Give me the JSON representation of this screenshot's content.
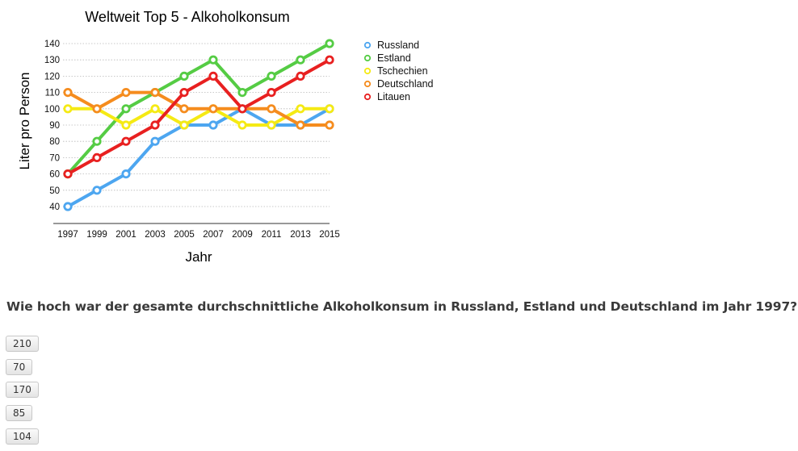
{
  "chart_data": {
    "type": "line",
    "title": "Weltweit Top 5 - Alkoholkonsum",
    "xlabel": "Jahr",
    "ylabel": "Liter pro Person",
    "x": [
      "1997",
      "1999",
      "2001",
      "2003",
      "2005",
      "2007",
      "2009",
      "2011",
      "2013",
      "2015"
    ],
    "yticks": [
      40,
      50,
      60,
      70,
      80,
      90,
      100,
      110,
      120,
      130,
      140
    ],
    "ylim": [
      40,
      140
    ],
    "grid": "horizontal-dotted",
    "legend_position": "right",
    "series": [
      {
        "name": "Russland",
        "color": "#4da6f0",
        "values": [
          40,
          50,
          60,
          80,
          90,
          90,
          100,
          90,
          90,
          100
        ]
      },
      {
        "name": "Estland",
        "color": "#55cc44",
        "values": [
          60,
          80,
          100,
          110,
          120,
          130,
          110,
          120,
          130,
          140
        ]
      },
      {
        "name": "Tschechien",
        "color": "#f5ea14",
        "values": [
          100,
          100,
          90,
          100,
          90,
          100,
          90,
          90,
          100,
          100
        ]
      },
      {
        "name": "Deutschland",
        "color": "#f58c1e",
        "values": [
          110,
          100,
          110,
          110,
          100,
          100,
          100,
          100,
          90,
          90
        ]
      },
      {
        "name": "Litauen",
        "color": "#e82020",
        "values": [
          60,
          70,
          80,
          90,
          110,
          120,
          100,
          110,
          120,
          130
        ]
      }
    ]
  },
  "question": {
    "text": "Wie hoch war der gesamte durchschnittliche Alkoholkonsum in Russland, Estland und Deutschland im Jahr 1997?"
  },
  "answers": [
    "210",
    "70",
    "170",
    "85",
    "104"
  ]
}
